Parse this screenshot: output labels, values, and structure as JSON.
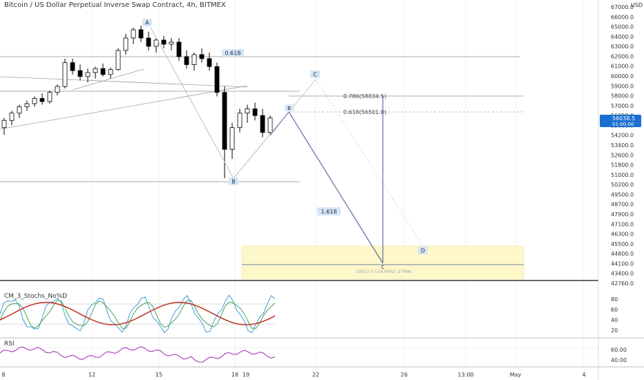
{
  "header": {
    "title": "Bitcoin / US Dollar Perpetual Inverse Swap Contract, 4h, BITMEX"
  },
  "colors": {
    "grid": "#e6e6e6",
    "candle_up": "#ffffff",
    "candle_down": "#000000",
    "pattern": "#5b6fa3",
    "pattern_light": "#c9cfd9",
    "label_bg": "#d6e6f5",
    "price_tag": "#1a6fd1",
    "target_zone": "#fdf7c9",
    "stoch_k": "#3b9dd8",
    "stoch_d": "#4c9f58",
    "stoch_slow": "#c0392b",
    "rsi": "#9c27b0"
  },
  "price_axis": {
    "currency": "USD",
    "labels": [
      "67000.0",
      "66000.0",
      "65000.0",
      "64000.0",
      "63000.0",
      "62000.0",
      "61000.0",
      "60000.0",
      "59000.0",
      "58000.0",
      "57000.0",
      "56000.0",
      "55000.0",
      "54200.0",
      "53400.0",
      "52600.0",
      "51800.0",
      "51000.0",
      "50200.0",
      "49500.0",
      "48700.0",
      "47900.0",
      "47100.0",
      "46300.0",
      "45500.0",
      "44800.0",
      "44100.0",
      "43400.0",
      "42760.0"
    ],
    "current_price": "56038.5",
    "countdown": "01:00:00"
  },
  "time_axis": {
    "labels": [
      "8",
      "12",
      "15",
      "18",
      "19",
      "22",
      "26",
      "13:00",
      "May",
      "4"
    ]
  },
  "pattern_labels": {
    "A": "A",
    "B": "B",
    "C": "C",
    "D": "D",
    "b": "B",
    "c": "C"
  },
  "fib_labels": {
    "ratio_upper": "0.618",
    "level_786": "0.786(58034.5)",
    "level_618": "0.618(56501.0)",
    "extension": "1.618",
    "measure": "-15927.5 (-24.00%) -27966"
  },
  "stoch": {
    "title": "CM_3_Stochs_No%D",
    "axis": [
      "80",
      "60",
      "40",
      "20"
    ]
  },
  "rsi": {
    "title": "RSI",
    "axis": [
      "60.00",
      "40.00"
    ]
  },
  "chart_data": {
    "type": "candlestick",
    "title": "Bitcoin / US Dollar Perpetual Inverse Swap Contract, 4h, BITMEX",
    "price_range": [
      42760,
      67000
    ],
    "annotations": {
      "A": 64800,
      "B": 51000,
      "b": 56500,
      "c_projection": 59500,
      "C": 44100,
      "D": 45500,
      "fib_786": 58034.5,
      "fib_618": 56501.0
    },
    "candles_approx": [
      [
        0,
        55200,
        56000,
        54600,
        55800
      ],
      [
        1,
        55800,
        56600,
        55400,
        56400
      ],
      [
        2,
        56400,
        57200,
        56000,
        57000
      ],
      [
        3,
        57000,
        57600,
        56600,
        57300
      ],
      [
        4,
        57300,
        58000,
        57000,
        57800
      ],
      [
        5,
        57800,
        58300,
        57200,
        57500
      ],
      [
        6,
        57500,
        58600,
        57300,
        58400
      ],
      [
        7,
        58400,
        59200,
        58100,
        59000
      ],
      [
        8,
        59000,
        61800,
        58800,
        61400
      ],
      [
        9,
        61400,
        61800,
        60200,
        60600
      ],
      [
        10,
        60600,
        61200,
        59600,
        60000
      ],
      [
        11,
        60000,
        60800,
        59400,
        60400
      ],
      [
        12,
        60400,
        61000,
        59800,
        60800
      ],
      [
        13,
        60800,
        61300,
        60000,
        60200
      ],
      [
        14,
        60200,
        60900,
        59800,
        60700
      ],
      [
        15,
        60700,
        62800,
        60600,
        62600
      ],
      [
        16,
        62600,
        64200,
        62200,
        63800
      ],
      [
        17,
        63800,
        64800,
        63200,
        64600
      ],
      [
        18,
        64600,
        65000,
        63400,
        63800
      ],
      [
        19,
        63800,
        64400,
        62600,
        63000
      ],
      [
        20,
        63000,
        63800,
        62400,
        63600
      ],
      [
        21,
        63600,
        64000,
        62800,
        63200
      ],
      [
        22,
        63200,
        63800,
        62600,
        63400
      ],
      [
        23,
        63400,
        63800,
        61600,
        62000
      ],
      [
        24,
        62000,
        62600,
        60800,
        61200
      ],
      [
        25,
        61200,
        62400,
        60600,
        62200
      ],
      [
        26,
        62200,
        62800,
        61400,
        61800
      ],
      [
        27,
        61800,
        62400,
        60600,
        61000
      ],
      [
        28,
        61000,
        61400,
        58000,
        58400
      ],
      [
        29,
        58400,
        59000,
        51000,
        53400
      ],
      [
        30,
        53400,
        55600,
        52600,
        55200
      ],
      [
        31,
        55200,
        56800,
        54800,
        56400
      ],
      [
        32,
        56400,
        57200,
        55600,
        56800
      ],
      [
        33,
        56800,
        57400,
        55800,
        56200
      ],
      [
        34,
        56200,
        56800,
        54400,
        54800
      ],
      [
        35,
        54800,
        56200,
        54600,
        56000
      ]
    ],
    "stoch_range": [
      0,
      100
    ],
    "rsi_range": [
      25,
      75
    ]
  }
}
